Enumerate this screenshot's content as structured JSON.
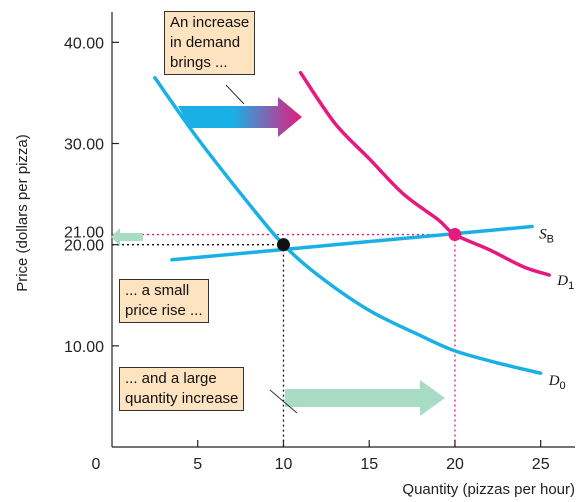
{
  "chart_data": {
    "type": "line",
    "title": "",
    "xlabel": "Quantity (pizzas per hour)",
    "ylabel": "Price (dollars per pizza)",
    "xlim": [
      0,
      27
    ],
    "ylim": [
      0,
      43
    ],
    "x_ticks": [
      "0",
      "5",
      "10",
      "15",
      "20",
      "25"
    ],
    "x_tick_values": [
      0,
      5,
      10,
      15,
      20,
      25
    ],
    "y_ticks": [
      "10.00",
      "20.00",
      "30.00",
      "40.00"
    ],
    "y_tick_values": [
      10,
      20,
      30,
      40
    ],
    "highlight_tick": {
      "label": "21.00",
      "value": 21,
      "x_label": "20"
    },
    "series": [
      {
        "label_main": "D",
        "label_sub": "0",
        "color": "#1ab0e6",
        "points": [
          [
            2.5,
            36.5
          ],
          [
            5,
            30.5
          ],
          [
            8,
            24
          ],
          [
            10,
            20
          ],
          [
            12,
            17
          ],
          [
            15,
            13.5
          ],
          [
            18,
            11
          ],
          [
            20,
            9.5
          ],
          [
            22.5,
            8.3
          ],
          [
            25,
            7.3
          ]
        ]
      },
      {
        "label_main": "D",
        "label_sub": "1",
        "color": "#e6197e",
        "points": [
          [
            11,
            37
          ],
          [
            13,
            32
          ],
          [
            15,
            28.5
          ],
          [
            17,
            25
          ],
          [
            19,
            22.5
          ],
          [
            20,
            21
          ],
          [
            22,
            19.5
          ],
          [
            24,
            17.8
          ],
          [
            25.5,
            17
          ]
        ]
      },
      {
        "label_main": "S",
        "label_sub": "B",
        "color": "#1ab0e6",
        "points": [
          [
            3.5,
            18.5
          ],
          [
            24.5,
            21.8
          ]
        ]
      }
    ],
    "equilibria": [
      {
        "x": 10,
        "y": 20,
        "color": "#111111"
      },
      {
        "x": 20,
        "y": 21,
        "color": "#e6197e"
      }
    ],
    "colors": {
      "demand": "#1ab0e6",
      "demand_new": "#e6197e",
      "supply": "#1ab0e6",
      "small_arrow": "#a8dcc4",
      "callout_bg": "#fde3c0"
    },
    "annotations": [
      {
        "id": "demand",
        "text": "An increase\nin demand\nbrings ..."
      },
      {
        "id": "price",
        "text": "... a small\nprice rise ..."
      },
      {
        "id": "quantity",
        "text": "... and a large\nquantity increase"
      }
    ]
  }
}
